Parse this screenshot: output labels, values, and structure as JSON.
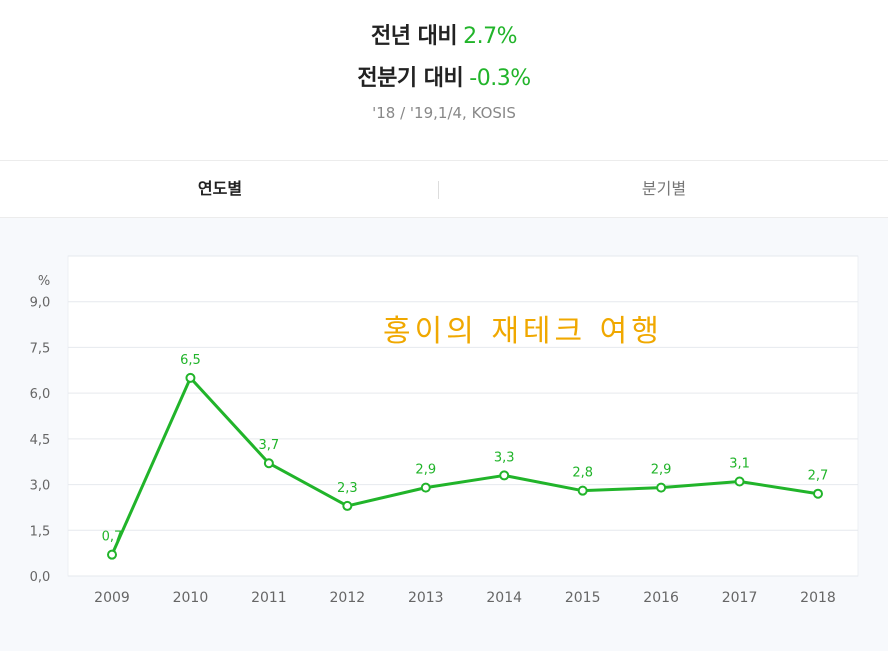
{
  "header": {
    "yoy_label": "전년 대비",
    "yoy_value": "2.7%",
    "qoq_label": "전분기 대비",
    "qoq_value": "-0.3%",
    "source": "'18 / '19,1/4, KOSIS"
  },
  "tabs": [
    {
      "label": "연도별",
      "active": true
    },
    {
      "label": "분기별",
      "active": false
    }
  ],
  "watermark": "홍이의 재테크 여행",
  "colors": {
    "accent": "#21b42a",
    "grid": "#e6e9ee",
    "watermark": "#f0a800"
  },
  "chart_data": {
    "type": "line",
    "ylabel": "%",
    "categories": [
      "2009",
      "2010",
      "2011",
      "2012",
      "2013",
      "2014",
      "2015",
      "2016",
      "2017",
      "2018"
    ],
    "values": [
      0.7,
      6.5,
      3.7,
      2.3,
      2.9,
      3.3,
      2.8,
      2.9,
      3.1,
      2.7
    ],
    "value_labels": [
      "0,7",
      "6,5",
      "3,7",
      "2,3",
      "2,9",
      "3,3",
      "2,8",
      "2,9",
      "3,1",
      "2,7"
    ],
    "yticks": [
      "0,0",
      "1,5",
      "3,0",
      "4,5",
      "6,0",
      "7,5",
      "9,0"
    ],
    "ytick_values": [
      0,
      1.5,
      3,
      4.5,
      6,
      7.5,
      9
    ],
    "ylim": [
      0,
      10.5
    ],
    "grid": true
  }
}
